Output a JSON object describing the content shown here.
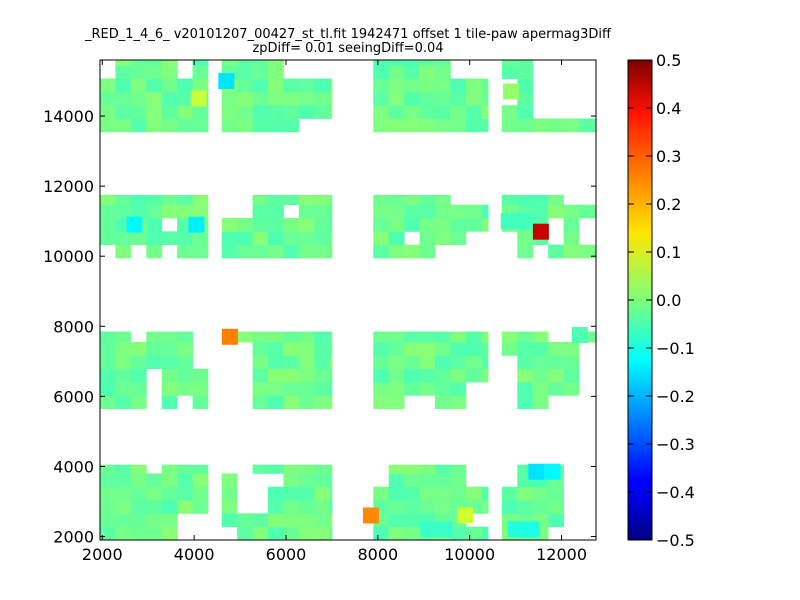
{
  "chart_data": {
    "type": "heatmap",
    "title_lines": [
      "_RED_1_4_6_ v20101207_00427_st_tl.fit 1942471 offset 1 tile-paw apermag3Diff",
      "zpDiff= 0.01 seeingDiff=0.04"
    ],
    "xlabel": "",
    "ylabel": "",
    "xlim": [
      1950,
      12750
    ],
    "ylim": [
      1900,
      15600
    ],
    "xticks": [
      2000,
      4000,
      6000,
      8000,
      10000,
      12000
    ],
    "yticks": [
      2000,
      4000,
      6000,
      8000,
      10000,
      12000,
      14000
    ],
    "grid": false,
    "colormap": "jet",
    "colorbar": {
      "min": -0.5,
      "max": 0.5,
      "ticks": [
        0.5,
        0.4,
        0.3,
        0.2,
        0.1,
        0.0,
        -0.1,
        -0.2,
        -0.3,
        -0.4,
        -0.5
      ],
      "tick_labels": [
        "0.5",
        "0.4",
        "0.3",
        "0.2",
        "0.1",
        "0.0",
        "−0.1",
        "−0.2",
        "−0.3",
        "−0.4",
        "−0.5"
      ]
    },
    "cell_size": [
      336,
      380
    ],
    "default_value": -0.02,
    "regions": [
      {
        "name": "r1a",
        "x": [
          1950,
          4300
        ],
        "y": [
          13550,
          15600
        ],
        "holes": [
          [
            1950,
            2280,
            15200,
            15600
          ],
          [
            3600,
            3940,
            15200,
            15600
          ]
        ]
      },
      {
        "name": "r1b",
        "x": [
          4600,
          7000
        ],
        "y": [
          13550,
          15600
        ],
        "holes": [
          [
            6300,
            7000,
            13550,
            13920
          ],
          [
            5950,
            7000,
            15200,
            15600
          ]
        ]
      },
      {
        "name": "r1c",
        "x": [
          7900,
          10400
        ],
        "y": [
          13550,
          15600
        ],
        "holes": [
          [
            9580,
            10400,
            15200,
            15600
          ]
        ]
      },
      {
        "name": "r1d",
        "x": [
          10700,
          12750
        ],
        "y": [
          13550,
          15600
        ],
        "holes": [
          [
            10700,
            11050,
            14300,
            15200
          ],
          [
            11350,
            12750,
            13920,
            15600
          ]
        ]
      },
      {
        "name": "r2a",
        "x": [
          1950,
          4300
        ],
        "y": [
          9950,
          11750
        ],
        "holes": [
          [
            1950,
            2280,
            9950,
            10350
          ],
          [
            3240,
            3600,
            10700,
            11000
          ],
          [
            2600,
            2900,
            9950,
            10350
          ],
          [
            3240,
            3600,
            9950,
            10350
          ],
          [
            4300,
            4300,
            0,
            0
          ]
        ]
      },
      {
        "name": "r2b",
        "x": [
          4600,
          7000
        ],
        "y": [
          9950,
          11750
        ],
        "holes": [
          [
            4600,
            5300,
            11050,
            11750
          ],
          [
            5950,
            6300,
            11050,
            11450
          ]
        ]
      },
      {
        "name": "r2c",
        "x": [
          7900,
          10400
        ],
        "y": [
          9950,
          11750
        ],
        "holes": [
          [
            9580,
            10400,
            11400,
            11750
          ],
          [
            8610,
            8950,
            10350,
            10700
          ],
          [
            9250,
            10400,
            9950,
            10350
          ],
          [
            9950,
            10400,
            10350,
            10700
          ]
        ]
      },
      {
        "name": "r2d",
        "x": [
          10700,
          12750
        ],
        "y": [
          9950,
          11750
        ],
        "holes": [
          [
            10700,
            11050,
            9950,
            10700
          ],
          [
            11700,
            12050,
            10350,
            11050
          ],
          [
            11400,
            11700,
            9950,
            10350
          ],
          [
            12050,
            12750,
            11400,
            11750
          ],
          [
            12400,
            12750,
            10350,
            11050
          ]
        ]
      },
      {
        "name": "r3a",
        "x": [
          1950,
          4300
        ],
        "y": [
          5650,
          7850
        ],
        "holes": [
          [
            2600,
            2900,
            7500,
            7850
          ],
          [
            2900,
            3940,
            7850,
            7850
          ],
          [
            2900,
            3240,
            5650,
            6800
          ],
          [
            3600,
            3940,
            5650,
            6100
          ],
          [
            3940,
            4300,
            6800,
            7850
          ]
        ]
      },
      {
        "name": "r3b",
        "x": [
          4600,
          7000
        ],
        "y": [
          5650,
          7850
        ],
        "holes": [
          [
            4600,
            5300,
            5650,
            7500
          ],
          [
            6650,
            7000,
            5300,
            5650
          ]
        ]
      },
      {
        "name": "r3c",
        "x": [
          7900,
          10400
        ],
        "y": [
          5650,
          7850
        ],
        "holes": [
          [
            8610,
            9250,
            5650,
            6100
          ],
          [
            9950,
            10400,
            5650,
            6400
          ]
        ]
      },
      {
        "name": "r3d",
        "x": [
          10700,
          12750
        ],
        "y": [
          5650,
          7850
        ],
        "holes": [
          [
            10700,
            11050,
            5650,
            7150
          ],
          [
            11700,
            12400,
            5650,
            5900
          ],
          [
            11700,
            12400,
            7500,
            7850
          ],
          [
            12400,
            12750,
            5650,
            7500
          ]
        ]
      },
      {
        "name": "r4a",
        "x": [
          1950,
          4300
        ],
        "y": [
          1900,
          4050
        ],
        "holes": [
          [
            3600,
            4300,
            1900,
            2800
          ],
          [
            2900,
            3240,
            3700,
            4050
          ]
        ]
      },
      {
        "name": "r4b",
        "x": [
          4600,
          7000
        ],
        "y": [
          1900,
          4050
        ],
        "holes": [
          [
            4950,
            5640,
            2800,
            3700
          ],
          [
            5640,
            5950,
            3300,
            3700
          ],
          [
            4600,
            4950,
            1900,
            2350
          ],
          [
            4600,
            5300,
            3700,
            4050
          ]
        ]
      },
      {
        "name": "r4c",
        "x": [
          7900,
          10400
        ],
        "y": [
          1900,
          4050
        ],
        "holes": [
          [
            7900,
            8300,
            3300,
            4050
          ],
          [
            9950,
            10400,
            3300,
            4050
          ],
          [
            10050,
            10400,
            2300,
            2800
          ]
        ]
      },
      {
        "name": "r4d",
        "x": [
          10700,
          12750
        ],
        "y": [
          1900,
          4050
        ],
        "holes": [
          [
            10700,
            11050,
            3300,
            4050
          ],
          [
            12000,
            12750,
            2300,
            4050
          ],
          [
            11700,
            12750,
            1900,
            2300
          ]
        ]
      }
    ],
    "highlight_cells": [
      {
        "x": 4700,
        "y": 15000,
        "value": -0.15
      },
      {
        "x": 4100,
        "y": 14500,
        "value": 0.07
      },
      {
        "x": 2700,
        "y": 10900,
        "value": -0.13
      },
      {
        "x": 4050,
        "y": 10900,
        "value": -0.14
      },
      {
        "x": 11550,
        "y": 10700,
        "value": 0.43
      },
      {
        "x": 4780,
        "y": 7700,
        "value": 0.25
      },
      {
        "x": 7850,
        "y": 2600,
        "value": 0.24
      },
      {
        "x": 9900,
        "y": 2600,
        "value": 0.08
      },
      {
        "x": 11450,
        "y": 3850,
        "value": -0.15
      },
      {
        "x": 11800,
        "y": 3850,
        "value": -0.13
      },
      {
        "x": 11000,
        "y": 2200,
        "value": -0.09
      },
      {
        "x": 11350,
        "y": 2200,
        "value": -0.1
      },
      {
        "x": 9100,
        "y": 2200,
        "value": -0.07
      },
      {
        "x": 9450,
        "y": 2200,
        "value": -0.07
      },
      {
        "x": 12400,
        "y": 7750,
        "value": -0.05
      },
      {
        "x": 10900,
        "y": 14700,
        "value": 0.02
      },
      {
        "x": 10850,
        "y": 11000,
        "value": -0.06
      },
      {
        "x": 11200,
        "y": 11000,
        "value": -0.06
      }
    ]
  }
}
